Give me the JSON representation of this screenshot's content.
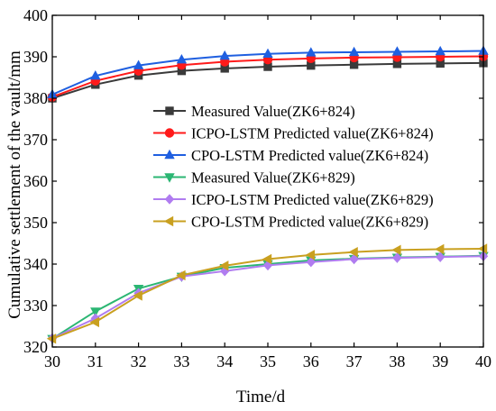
{
  "chart_data": {
    "type": "line",
    "xlabel": "Time/d",
    "ylabel": "Cumulative settlement of the vault/mm",
    "xlim": [
      30,
      40
    ],
    "ylim": [
      320,
      400
    ],
    "xticks": [
      30,
      31,
      32,
      33,
      34,
      35,
      36,
      37,
      38,
      39,
      40
    ],
    "yticks": [
      320,
      330,
      340,
      350,
      360,
      370,
      380,
      390,
      400
    ],
    "grid": false,
    "legend_position": "center-right",
    "x": [
      30,
      31,
      32,
      33,
      34,
      35,
      36,
      37,
      38,
      39,
      40
    ],
    "series": [
      {
        "name": "Measured Value(ZK6+824)",
        "color": "#3a3a3a",
        "marker": "square",
        "values": [
          380.0,
          383.3,
          385.5,
          386.6,
          387.2,
          387.6,
          387.9,
          388.1,
          388.3,
          388.4,
          388.5
        ]
      },
      {
        "name": "ICPO-LSTM Predicted value(ZK6+824)",
        "color": "#ff1a1a",
        "marker": "circle",
        "values": [
          380.3,
          384.2,
          386.6,
          388.0,
          388.8,
          389.3,
          389.6,
          389.8,
          389.9,
          390.0,
          390.1
        ]
      },
      {
        "name": "CPO-LSTM Predicted value(ZK6+824)",
        "color": "#1f5fe0",
        "marker": "triangle-up",
        "values": [
          380.9,
          385.4,
          387.9,
          389.3,
          390.2,
          390.7,
          391.0,
          391.1,
          391.2,
          391.3,
          391.4
        ]
      },
      {
        "name": "Measured Value(ZK6+829)",
        "color": "#2bb673",
        "marker": "triangle-down",
        "values": [
          322.0,
          328.6,
          334.1,
          337.0,
          339.1,
          340.0,
          340.9,
          341.3,
          341.6,
          341.8,
          342.0
        ]
      },
      {
        "name": "ICPO-LSTM Predicted value(ZK6+829)",
        "color": "#b07cf0",
        "marker": "diamond",
        "values": [
          322.1,
          326.9,
          333.0,
          337.0,
          338.3,
          339.7,
          340.5,
          341.2,
          341.5,
          341.7,
          341.9
        ]
      },
      {
        "name": "CPO-LSTM Predicted value(ZK6+829)",
        "color": "#c9a020",
        "marker": "triangle-left",
        "values": [
          322.0,
          326.0,
          332.4,
          337.3,
          339.6,
          341.2,
          342.2,
          342.9,
          343.4,
          343.6,
          343.7
        ]
      }
    ]
  }
}
